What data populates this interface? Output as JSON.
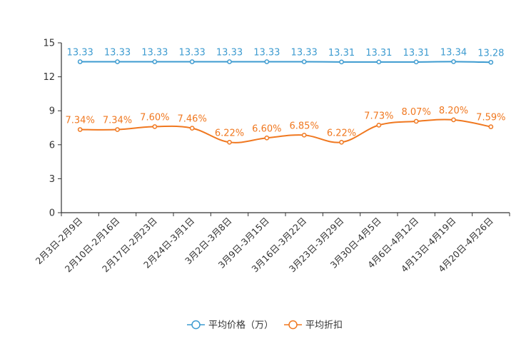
{
  "chart_data": {
    "type": "line",
    "categories": [
      "2月3日-2月9日",
      "2月10日-2月16日",
      "2月17日-2月23日",
      "2月24日-3月1日",
      "3月2日-3月8日",
      "3月9日-3月15日",
      "3月16日-3月22日",
      "3月23日-3月29日",
      "3月30日-4月5日",
      "4月6日-4月12日",
      "4月13日-4月19日",
      "4月20日-4月26日"
    ],
    "ylim": [
      0,
      15
    ],
    "yticks": [
      0,
      3,
      6,
      9,
      12,
      15
    ],
    "series": [
      {
        "name": "平均价格（万）",
        "color": "#3d9bd0",
        "values": [
          13.33,
          13.33,
          13.33,
          13.33,
          13.33,
          13.33,
          13.33,
          13.31,
          13.31,
          13.31,
          13.34,
          13.28
        ],
        "labels": [
          "13.33",
          "13.33",
          "13.33",
          "13.33",
          "13.33",
          "13.33",
          "13.33",
          "13.31",
          "13.31",
          "13.31",
          "13.34",
          "13.28"
        ]
      },
      {
        "name": "平均折扣",
        "color": "#f07820",
        "values": [
          7.34,
          7.34,
          7.6,
          7.46,
          6.22,
          6.6,
          6.85,
          6.22,
          7.73,
          8.07,
          8.2,
          7.59
        ],
        "labels": [
          "7.34%",
          "7.34%",
          "7.60%",
          "7.46%",
          "6.22%",
          "6.60%",
          "6.85%",
          "6.22%",
          "7.73%",
          "8.07%",
          "8.20%",
          "7.59%"
        ]
      }
    ]
  }
}
